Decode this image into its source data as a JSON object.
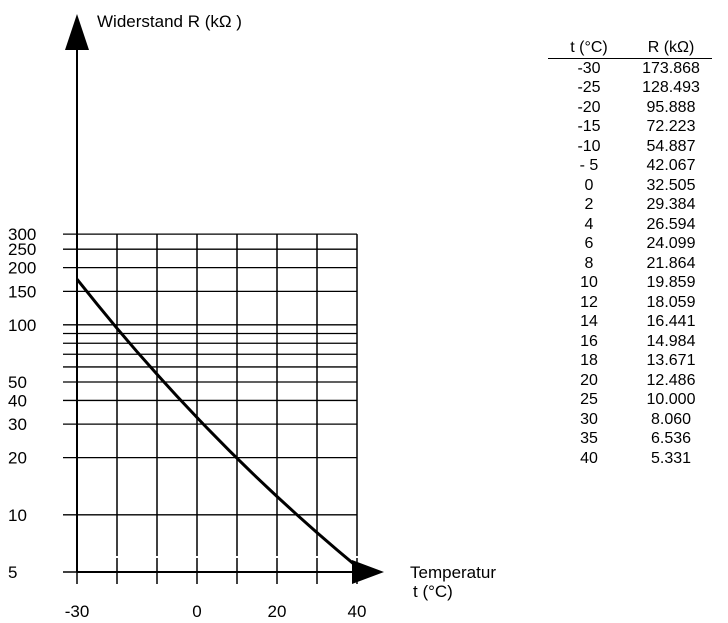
{
  "chart_data": {
    "type": "line",
    "y_axis_title": "Widerstand  R (kΩ  )",
    "x_axis_title_line1": "Temperatur",
    "x_axis_title_line2": "t (°C)",
    "y_scale": "log",
    "xlim": [
      -30,
      40
    ],
    "ylim": [
      5,
      300
    ],
    "grid": true,
    "x_tick_labels": [
      "-30",
      "0",
      "20",
      "40"
    ],
    "x_tick_label_values": [
      -30,
      0,
      20,
      40
    ],
    "x_ticks": [
      -30,
      -20,
      -10,
      0,
      10,
      20,
      30,
      40
    ],
    "y_tick_labels": [
      "300",
      "250",
      "200",
      "150",
      "100",
      "50",
      "40",
      "30",
      "20",
      "10",
      "5"
    ],
    "y_tick_label_values": [
      300,
      250,
      200,
      150,
      100,
      50,
      40,
      30,
      20,
      10,
      5
    ],
    "y_gridlines": [
      300,
      250,
      200,
      150,
      100,
      90,
      80,
      70,
      60,
      50,
      40,
      30,
      20,
      10
    ],
    "series": [
      {
        "x": [
          -30,
          -25,
          -20,
          -15,
          -10,
          -5,
          0,
          2,
          4,
          6,
          8,
          10,
          12,
          14,
          16,
          18,
          20,
          25,
          30,
          35,
          40
        ],
        "values": [
          173.868,
          128.493,
          95.888,
          72.223,
          54.887,
          42.067,
          32.505,
          29.384,
          26.594,
          24.099,
          21.864,
          19.859,
          18.059,
          16.441,
          14.984,
          13.671,
          12.486,
          10.0,
          8.06,
          6.536,
          5.331
        ],
        "color": "#000000"
      }
    ]
  },
  "table": {
    "headers": [
      "t (°C)",
      "R (kΩ)"
    ],
    "rows": [
      [
        "-30",
        "173.868"
      ],
      [
        "-25",
        "128.493"
      ],
      [
        "-20",
        "95.888"
      ],
      [
        "-15",
        "72.223"
      ],
      [
        "-10",
        "54.887"
      ],
      [
        "- 5",
        "42.067"
      ],
      [
        "0",
        "32.505"
      ],
      [
        "2",
        "29.384"
      ],
      [
        "4",
        "26.594"
      ],
      [
        "6",
        "24.099"
      ],
      [
        "8",
        "21.864"
      ],
      [
        "10",
        "19.859"
      ],
      [
        "12",
        "18.059"
      ],
      [
        "14",
        "16.441"
      ],
      [
        "16",
        "14.984"
      ],
      [
        "18",
        "13.671"
      ],
      [
        "20",
        "12.486"
      ],
      [
        "25",
        "10.000"
      ],
      [
        "30",
        "8.060"
      ],
      [
        "35",
        "6.536"
      ],
      [
        "40",
        "5.331"
      ]
    ]
  }
}
